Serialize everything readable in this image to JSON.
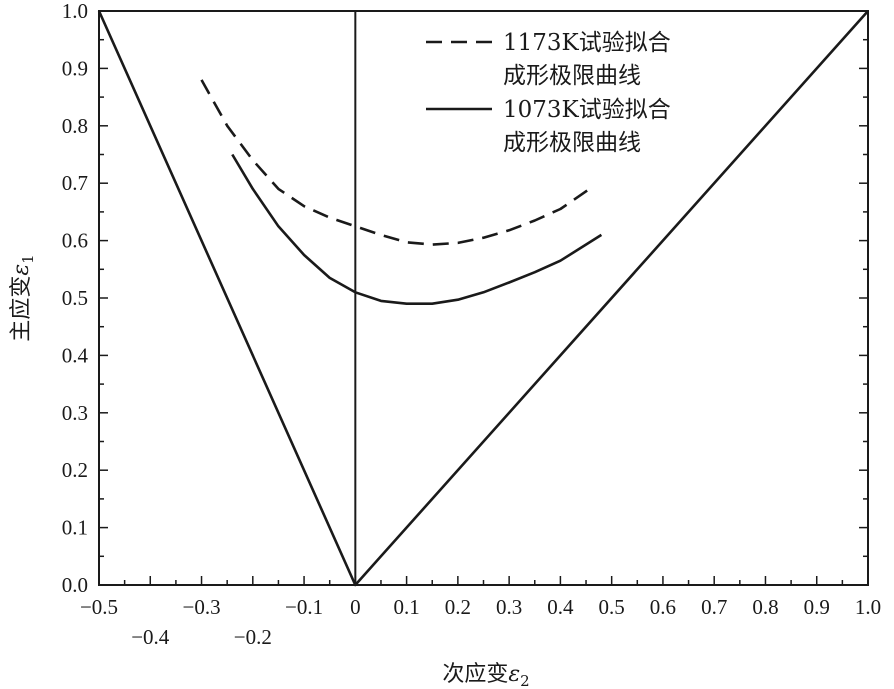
{
  "chart_data": {
    "type": "line",
    "xlabel": "次应变",
    "xlabel_symbol": "ε",
    "xlabel_sub": "2",
    "ylabel": "主应变",
    "ylabel_symbol": "ε",
    "ylabel_sub": "1",
    "xlim": [
      -0.5,
      1.0
    ],
    "ylim": [
      0.0,
      1.0
    ],
    "x_ticks": [
      {
        "value": -0.5,
        "label": "−0.5",
        "row": 0
      },
      {
        "value": -0.4,
        "label": "−0.4",
        "row": 1
      },
      {
        "value": -0.3,
        "label": "−0.3",
        "row": 0
      },
      {
        "value": -0.2,
        "label": "−0.2",
        "row": 1
      },
      {
        "value": -0.1,
        "label": "−0.1",
        "row": 0
      },
      {
        "value": 0.0,
        "label": "0",
        "row": 0
      },
      {
        "value": 0.1,
        "label": "0.1",
        "row": 0
      },
      {
        "value": 0.2,
        "label": "0.2",
        "row": 0
      },
      {
        "value": 0.3,
        "label": "0.3",
        "row": 0
      },
      {
        "value": 0.4,
        "label": "0.4",
        "row": 0
      },
      {
        "value": 0.5,
        "label": "0.5",
        "row": 0
      },
      {
        "value": 0.6,
        "label": "0.6",
        "row": 0
      },
      {
        "value": 0.7,
        "label": "0.7",
        "row": 0
      },
      {
        "value": 0.8,
        "label": "0.8",
        "row": 0
      },
      {
        "value": 0.9,
        "label": "0.9",
        "row": 0
      },
      {
        "value": 1.0,
        "label": "1.0",
        "row": 0
      }
    ],
    "y_ticks": [
      {
        "value": 0.0,
        "label": "0.0"
      },
      {
        "value": 0.1,
        "label": "0.1"
      },
      {
        "value": 0.2,
        "label": "0.2"
      },
      {
        "value": 0.3,
        "label": "0.3"
      },
      {
        "value": 0.4,
        "label": "0.4"
      },
      {
        "value": 0.5,
        "label": "0.5"
      },
      {
        "value": 0.6,
        "label": "0.6"
      },
      {
        "value": 0.7,
        "label": "0.7"
      },
      {
        "value": 0.8,
        "label": "0.8"
      },
      {
        "value": 0.9,
        "label": "0.9"
      },
      {
        "value": 1.0,
        "label": "1.0"
      }
    ],
    "series": [
      {
        "name": "1173K试验拟合成形极限曲线",
        "legend_lines": [
          "1173K试验拟合",
          "成形极限曲线"
        ],
        "style": "dashed",
        "color": "#1a1a1a",
        "points": [
          [
            -0.3,
            0.88
          ],
          [
            -0.25,
            0.8
          ],
          [
            -0.2,
            0.74
          ],
          [
            -0.15,
            0.69
          ],
          [
            -0.1,
            0.66
          ],
          [
            -0.05,
            0.64
          ],
          [
            0.0,
            0.625
          ],
          [
            0.05,
            0.61
          ],
          [
            0.1,
            0.597
          ],
          [
            0.15,
            0.593
          ],
          [
            0.2,
            0.596
          ],
          [
            0.25,
            0.605
          ],
          [
            0.3,
            0.618
          ],
          [
            0.35,
            0.635
          ],
          [
            0.4,
            0.655
          ],
          [
            0.46,
            0.692
          ]
        ]
      },
      {
        "name": "1073K试验拟合成形极限曲线",
        "legend_lines": [
          "1073K试验拟合",
          "成形极限曲线"
        ],
        "style": "solid",
        "color": "#1a1a1a",
        "points": [
          [
            -0.24,
            0.75
          ],
          [
            -0.2,
            0.69
          ],
          [
            -0.15,
            0.625
          ],
          [
            -0.1,
            0.575
          ],
          [
            -0.05,
            0.535
          ],
          [
            0.0,
            0.51
          ],
          [
            0.05,
            0.495
          ],
          [
            0.1,
            0.49
          ],
          [
            0.15,
            0.49
          ],
          [
            0.2,
            0.497
          ],
          [
            0.25,
            0.51
          ],
          [
            0.3,
            0.527
          ],
          [
            0.35,
            0.545
          ],
          [
            0.4,
            0.565
          ],
          [
            0.48,
            0.61
          ]
        ]
      },
      {
        "name": "",
        "legend_lines": [],
        "style": "solid",
        "color": "#1a1a1a",
        "points": [
          [
            -0.5,
            1.0
          ],
          [
            0.0,
            0.0
          ],
          [
            1.0,
            1.0
          ]
        ]
      }
    ],
    "legend_position": "top-right",
    "grid": false
  }
}
